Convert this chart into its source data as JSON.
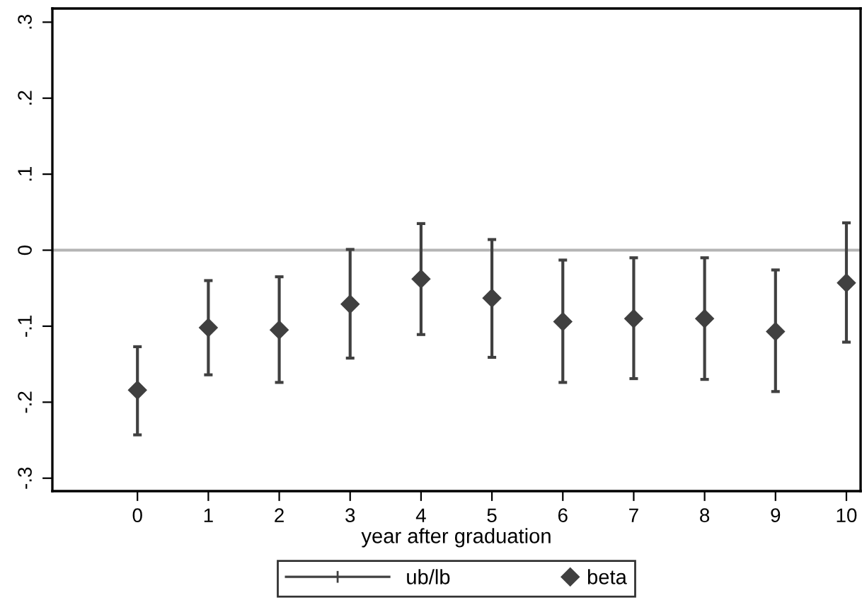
{
  "chart_data": {
    "type": "scatter",
    "xlabel": "year after graduation",
    "x": [
      0,
      1,
      2,
      3,
      4,
      5,
      6,
      7,
      8,
      9,
      10
    ],
    "series": [
      {
        "name": "beta",
        "color": "#404040",
        "values": [
          -0.184,
          -0.102,
          -0.105,
          -0.071,
          -0.038,
          -0.063,
          -0.094,
          -0.09,
          -0.09,
          -0.107,
          -0.043
        ],
        "errors": [
          [
            -0.243,
            -0.127
          ],
          [
            -0.164,
            -0.04
          ],
          [
            -0.174,
            -0.035
          ],
          [
            -0.142,
            0.001
          ],
          [
            -0.111,
            0.035
          ],
          [
            -0.141,
            0.014
          ],
          [
            -0.174,
            -0.013
          ],
          [
            -0.169,
            -0.01
          ],
          [
            -0.17,
            -0.01
          ],
          [
            -0.186,
            -0.026
          ],
          [
            -0.121,
            0.036
          ]
        ]
      }
    ],
    "marker": "diamond",
    "xlim": [
      -1.2,
      10.2
    ],
    "xticks": [
      0,
      1,
      2,
      3,
      4,
      5,
      6,
      7,
      8,
      9,
      10
    ],
    "ylim": [
      -0.317,
      0.318
    ],
    "yticks": [
      {
        "value": -0.3,
        "label": "-.3"
      },
      {
        "value": -0.2,
        "label": "-.2"
      },
      {
        "value": -0.1,
        "label": "-.1"
      },
      0,
      {
        "value": 0.1,
        "label": ".1"
      },
      {
        "value": 0.2,
        "label": ".2"
      },
      {
        "value": 0.3,
        "label": ".3"
      }
    ],
    "ref_lines": [
      {
        "axis": "y",
        "value": 0,
        "color": "#b4b4b4"
      }
    ],
    "annotations": [
      "ub/lb"
    ],
    "grid": false,
    "legend": "bottom"
  }
}
